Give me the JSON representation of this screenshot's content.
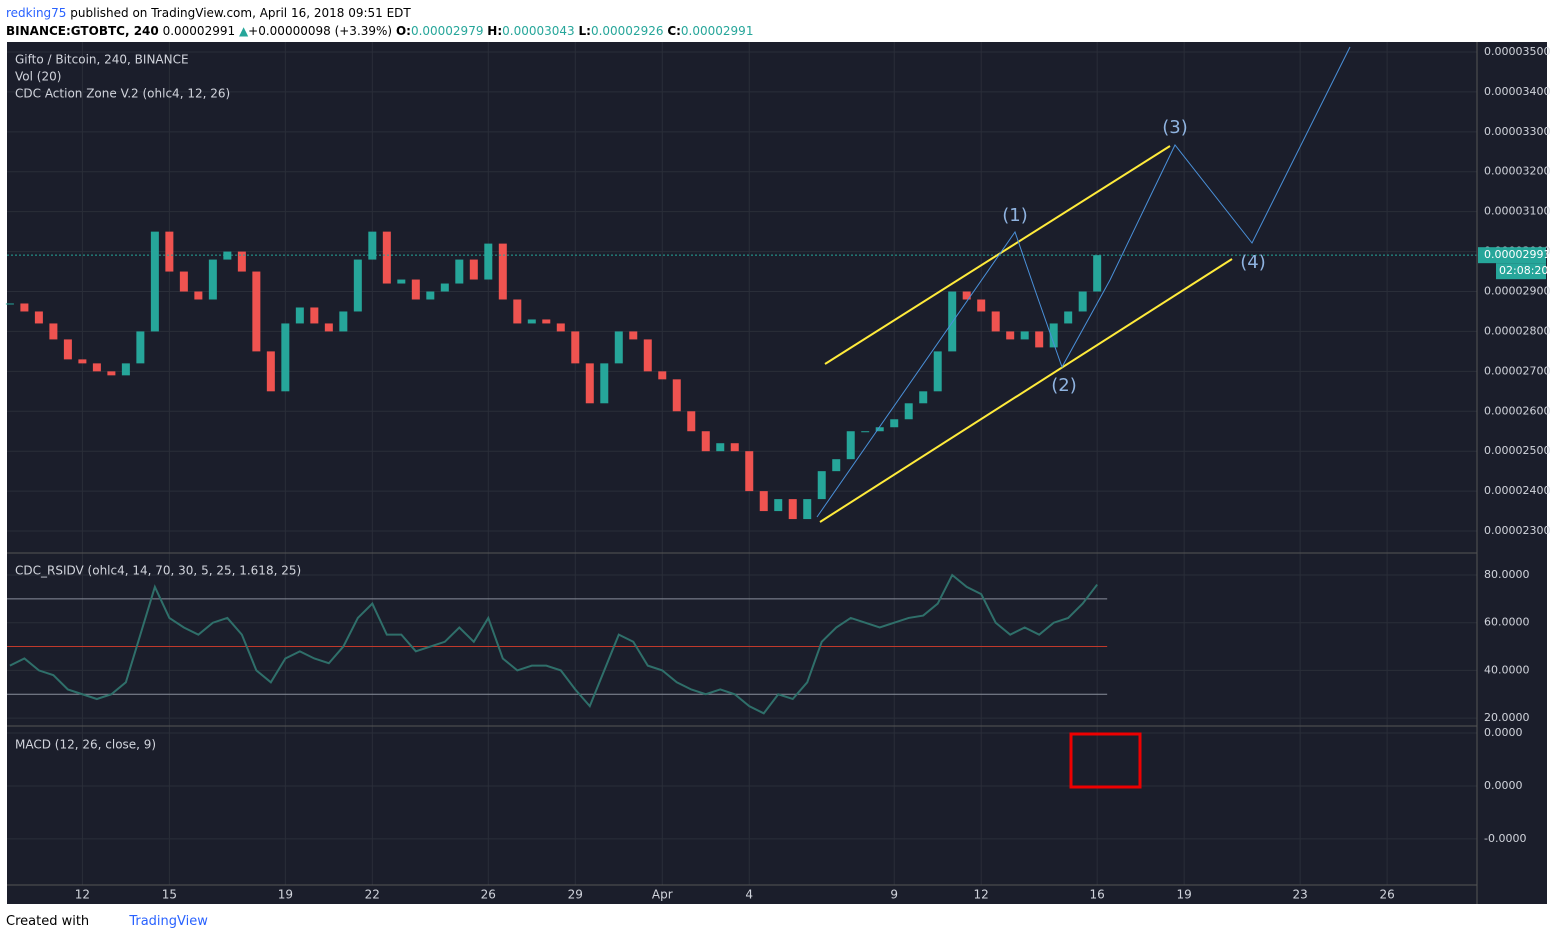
{
  "header": {
    "user": "redking75",
    "published": "published on TradingView.com, April 16, 2018 09:51 EDT",
    "symbol": "BINANCE:GTOBTC, 240",
    "last": "0.00002991",
    "change_arrow": "▲",
    "change": "+0.00000098 (+3.39%)",
    "o_label": "O:",
    "o": "0.00002979",
    "h_label": "H:",
    "h": "0.00003043",
    "l_label": "L:",
    "l": "0.00002926",
    "c_label": "C:",
    "c": "0.00002991"
  },
  "chart": {
    "title": "Gifto / Bitcoin, 240, BINANCE",
    "indicator1": "Vol (20)",
    "indicator2": "CDC Action Zone V.2 (ohlc4, 12, 26)",
    "up_color": "#26a69a",
    "down_color": "#ef5350",
    "ylim": [
      2.245e-05,
      3.525e-05
    ],
    "yticks": [
      {
        "value": 3.5e-05,
        "label": "0.00003500"
      },
      {
        "value": 3.4e-05,
        "label": "0.00003400"
      },
      {
        "value": 3.3e-05,
        "label": "0.00003300"
      },
      {
        "value": 3.2e-05,
        "label": "0.00003200"
      },
      {
        "value": 3.1e-05,
        "label": "0.00003100"
      },
      {
        "value": 3e-05,
        "label": "0.00003000"
      },
      {
        "value": 2.9e-05,
        "label": "0.00002900"
      },
      {
        "value": 2.8e-05,
        "label": "0.00002800"
      },
      {
        "value": 2.7e-05,
        "label": "0.00002700"
      },
      {
        "value": 2.6e-05,
        "label": "0.00002600"
      },
      {
        "value": 2.5e-05,
        "label": "0.00002500"
      },
      {
        "value": 2.4e-05,
        "label": "0.00002400"
      },
      {
        "value": 2.3e-05,
        "label": "0.00002300"
      }
    ],
    "last_price": {
      "value": 2.991e-05,
      "label": "0.00002991"
    },
    "countdown": "02:08:20",
    "x": [
      9.5,
      10,
      10.5,
      11,
      11.5,
      12,
      12.5,
      13,
      13.5,
      14,
      14.5,
      15,
      15.5,
      16,
      16.5,
      17,
      17.5,
      18,
      18.5,
      19,
      19.5,
      20,
      20.5,
      21,
      21.5,
      22,
      22.5,
      23,
      23.5,
      24,
      24.5,
      25,
      25.5,
      26,
      26.5,
      27,
      27.5,
      28,
      28.5,
      29,
      29.5,
      30,
      30.5,
      31,
      31.5,
      32,
      32.5,
      33,
      33.5,
      34,
      34.5,
      35,
      35.5,
      36,
      36.5,
      37,
      37.5,
      38,
      38.5,
      39,
      39.5,
      40,
      40.5,
      41,
      41.5,
      42,
      42.5,
      43,
      43.5,
      44,
      44.5,
      45,
      45.5,
      46,
      46.5,
      47
    ],
    "close": [
      2.87e-05,
      2.85e-05,
      2.82e-05,
      2.78e-05,
      2.73e-05,
      2.72e-05,
      2.7e-05,
      2.69e-05,
      2.72e-05,
      2.8e-05,
      3.05e-05,
      2.95e-05,
      2.9e-05,
      2.88e-05,
      2.98e-05,
      3e-05,
      2.95e-05,
      2.75e-05,
      2.65e-05,
      2.82e-05,
      2.86e-05,
      2.82e-05,
      2.8e-05,
      2.85e-05,
      2.98e-05,
      3.05e-05,
      2.92e-05,
      2.93e-05,
      2.88e-05,
      2.9e-05,
      2.92e-05,
      2.98e-05,
      2.93e-05,
      3.02e-05,
      2.88e-05,
      2.82e-05,
      2.83e-05,
      2.82e-05,
      2.8e-05,
      2.72e-05,
      2.62e-05,
      2.72e-05,
      2.8e-05,
      2.78e-05,
      2.7e-05,
      2.68e-05,
      2.6e-05,
      2.55e-05,
      2.5e-05,
      2.52e-05,
      2.5e-05,
      2.4e-05,
      2.35e-05,
      2.38e-05,
      2.33e-05,
      2.38e-05,
      2.45e-05,
      2.48e-05,
      2.55e-05,
      2.55e-05,
      2.56e-05,
      2.58e-05,
      2.62e-05,
      2.65e-05,
      2.75e-05,
      2.9e-05,
      2.88e-05,
      2.85e-05,
      2.8e-05,
      2.78e-05,
      2.8e-05,
      2.76e-05,
      2.82e-05,
      2.85e-05,
      2.9e-05,
      2.991e-05
    ]
  },
  "rsi": {
    "title": "CDC_RSIDV (ohlc4, 14, 70, 30, 5, 25, 1.618, 25)",
    "color": "#2f6f6a",
    "ylim": [
      17.1,
      88.4
    ],
    "yticks": [
      {
        "value": 80,
        "label": "80.0000"
      },
      {
        "value": 60,
        "label": "60.0000"
      },
      {
        "value": 40,
        "label": "40.0000"
      },
      {
        "value": 20,
        "label": "20.0000"
      }
    ],
    "levels": [
      70,
      50,
      30
    ],
    "values": [
      42,
      45,
      40,
      38,
      32,
      30,
      28,
      30,
      35,
      55,
      75,
      62,
      58,
      55,
      60,
      62,
      55,
      40,
      35,
      45,
      48,
      45,
      43,
      50,
      62,
      68,
      55,
      55,
      48,
      50,
      52,
      58,
      52,
      62,
      45,
      40,
      42,
      42,
      40,
      32,
      25,
      40,
      55,
      52,
      42,
      40,
      35,
      32,
      30,
      32,
      30,
      25,
      22,
      30,
      28,
      35,
      52,
      58,
      62,
      60,
      58,
      60,
      62,
      63,
      68,
      80,
      75,
      72,
      60,
      55,
      58,
      55,
      60,
      62,
      68,
      76
    ]
  },
  "macd": {
    "title": "MACD (12, 26, close, 9)",
    "ylim": [
      -1.87e-05,
      1.094e-05
    ],
    "yticks": [
      {
        "value": 1e-05,
        "label": "0.0000"
      },
      {
        "value": 0,
        "label": "0.0000"
      },
      {
        "value": -1e-05,
        "label": "-0.0000"
      }
    ]
  },
  "x_axis": {
    "xlim": [
      9.4,
      60.1
    ],
    "xticks": [
      12,
      15,
      19,
      22,
      26,
      29,
      {
        "value": 32,
        "label": "Apr"
      },
      {
        "value": 35,
        "label": "4"
      },
      {
        "value": 40,
        "label": "9"
      },
      {
        "value": 43,
        "label": "12"
      },
      {
        "value": 47,
        "label": "16"
      },
      {
        "value": 50,
        "label": "19"
      },
      {
        "value": 54,
        "label": "23"
      },
      {
        "value": 57,
        "label": "26"
      }
    ]
  },
  "annotations": {
    "w1": "(1)",
    "w2": "(2)",
    "w3": "(3)",
    "w4": "(4)"
  },
  "footer": {
    "created": "Created with",
    "brand": "TradingView"
  }
}
